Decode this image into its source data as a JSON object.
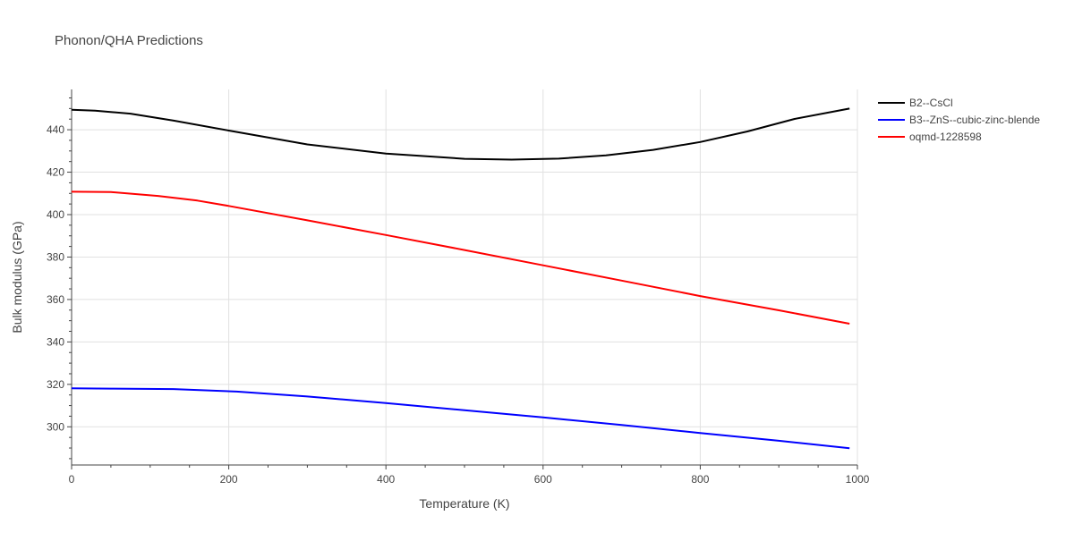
{
  "chart_data": {
    "type": "line",
    "title": "Phonon/QHA Predictions",
    "xlabel": "Temperature (K)",
    "ylabel": "Bulk modulus (GPa)",
    "xlim": [
      0,
      1000
    ],
    "ylim": [
      282,
      459
    ],
    "x_ticks": [
      0,
      200,
      400,
      600,
      800,
      1000
    ],
    "y_ticks": [
      300,
      320,
      340,
      360,
      380,
      400,
      420,
      440
    ],
    "grid": true,
    "legend_position": "right",
    "series": [
      {
        "name": "B2--CsCl",
        "color": "#000000",
        "x": [
          0,
          30,
          75,
          130,
          200,
          300,
          400,
          500,
          560,
          620,
          680,
          740,
          800,
          860,
          920,
          990
        ],
        "y": [
          449.4,
          449.0,
          447.6,
          444.3,
          439.6,
          433.1,
          428.8,
          426.3,
          425.9,
          426.4,
          427.9,
          430.5,
          434.2,
          439.2,
          445.1,
          450.0
        ]
      },
      {
        "name": "B3--ZnS--cubic-zinc-blende",
        "color": "#0000ff",
        "x": [
          0,
          50,
          130,
          210,
          300,
          400,
          500,
          600,
          700,
          800,
          900,
          990
        ],
        "y": [
          318.1,
          318.0,
          317.8,
          316.6,
          314.3,
          311.2,
          307.8,
          304.4,
          300.9,
          297.1,
          293.4,
          289.9
        ]
      },
      {
        "name": "oqmd-1228598",
        "color": "#ff0000",
        "x": [
          0,
          50,
          110,
          160,
          200,
          300,
          400,
          500,
          600,
          700,
          800,
          900,
          990
        ],
        "y": [
          410.8,
          410.6,
          408.8,
          406.6,
          404.1,
          397.3,
          390.4,
          383.3,
          376.1,
          368.9,
          361.6,
          354.9,
          348.6
        ]
      }
    ]
  }
}
